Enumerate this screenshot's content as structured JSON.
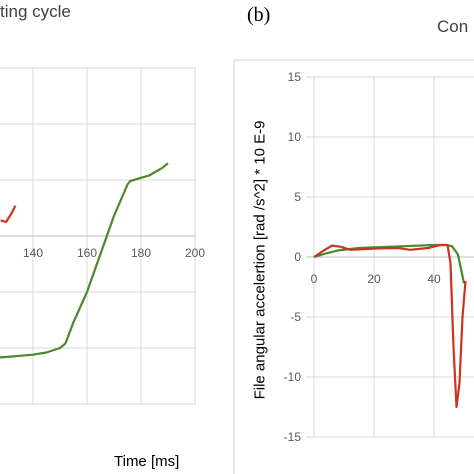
{
  "panel_b_label": "(b)",
  "chart_data": [
    {
      "type": "line",
      "title": "ting cycle",
      "xlabel": "Time [ms]",
      "ylabel": "",
      "xlim": [
        120,
        200
      ],
      "x_ticks": [
        "140",
        "160",
        "180",
        "200"
      ],
      "series": [
        {
          "color": "#cc3322",
          "x": [
            128,
            130,
            132,
            133.5
          ],
          "y": [
            1.4,
            1.25,
            2.0,
            2.7
          ]
        },
        {
          "color": "#4a8a2a",
          "x": [
            120,
            124,
            130,
            140,
            145,
            150,
            152,
            155,
            160,
            165,
            170,
            175,
            176,
            180,
            183,
            188,
            190
          ],
          "y": [
            -10.9,
            -10.9,
            -10.8,
            -10.6,
            -10.4,
            -10.0,
            -9.6,
            -7.7,
            -5.0,
            -1.6,
            1.8,
            4.6,
            4.9,
            5.2,
            5.4,
            6.1,
            6.5
          ]
        }
      ]
    },
    {
      "type": "line",
      "title": "Con",
      "xlabel": "",
      "ylabel": "File angular accelertion [rad /s^2] * 10 E-9",
      "ylim": [
        -15,
        15
      ],
      "y_ticks": [
        "15",
        "10",
        "5",
        "0",
        "-5",
        "-10",
        "-15"
      ],
      "x_ticks": [
        "0",
        "20",
        "40"
      ],
      "series": [
        {
          "color": "#4a8a2a",
          "x": [
            0,
            4,
            8,
            15,
            20,
            30,
            40,
            44,
            46,
            48,
            50
          ],
          "y": [
            0.0,
            0.3,
            0.55,
            0.75,
            0.8,
            0.9,
            1.0,
            1.0,
            0.9,
            0.2,
            -2.2
          ]
        },
        {
          "color": "#cc3322",
          "x": [
            0,
            3,
            6,
            9,
            12,
            20,
            28,
            32,
            38,
            42,
            44.5,
            45.5,
            46.5,
            47.5,
            48.5,
            49.5,
            50.5
          ],
          "y": [
            0.0,
            0.5,
            0.95,
            0.85,
            0.6,
            0.7,
            0.75,
            0.6,
            0.75,
            1.0,
            1.0,
            -0.5,
            -7.5,
            -12.5,
            -10.5,
            -5.0,
            -2.0
          ]
        }
      ]
    }
  ]
}
